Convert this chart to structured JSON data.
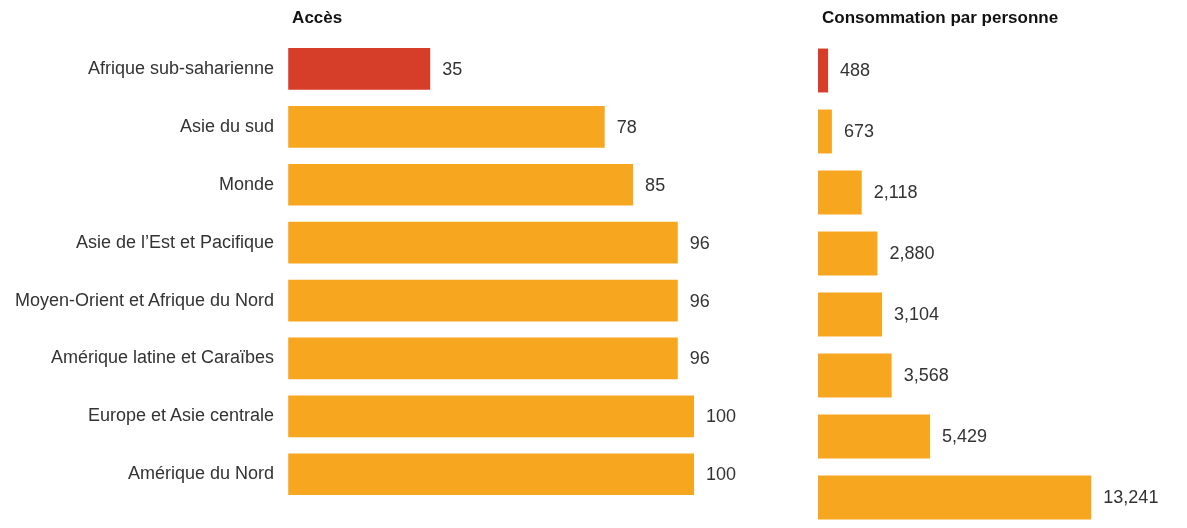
{
  "chart_data": [
    {
      "type": "bar",
      "orientation": "horizontal",
      "title": "Accès",
      "categories": [
        "Afrique sub-saharienne",
        "Asie du sud",
        "Monde",
        "Asie de l’Est et Pacifique",
        "Moyen-Orient et Afrique du Nord",
        "Amérique latine et Caraïbes",
        "Europe et Asie centrale",
        "Amérique du Nord"
      ],
      "values": [
        35,
        78,
        85,
        96,
        96,
        96,
        100,
        100
      ],
      "colors": [
        "#d63e2a",
        "#f7a71f",
        "#f7a71f",
        "#f7a71f",
        "#f7a71f",
        "#f7a71f",
        "#f7a71f",
        "#f7a71f"
      ],
      "data_labels": true,
      "grid": false,
      "tick_labels": "y"
    },
    {
      "type": "bar",
      "orientation": "horizontal",
      "title": "Consommation par personne",
      "categories": [
        null,
        null,
        null,
        null,
        null,
        null,
        null,
        null
      ],
      "values": [
        488,
        673,
        2118,
        2880,
        3104,
        3568,
        5429,
        13241
      ],
      "value_labels": [
        "488",
        "673",
        "2,118",
        "2,880",
        "3,104",
        "3,568",
        "5,429",
        "13,241"
      ],
      "colors": [
        "#d63e2a",
        "#f7a71f",
        "#f7a71f",
        "#f7a71f",
        "#f7a71f",
        "#f7a71f",
        "#f7a71f",
        "#f7a71f"
      ],
      "tick_labels": false,
      "grid": false
    }
  ]
}
